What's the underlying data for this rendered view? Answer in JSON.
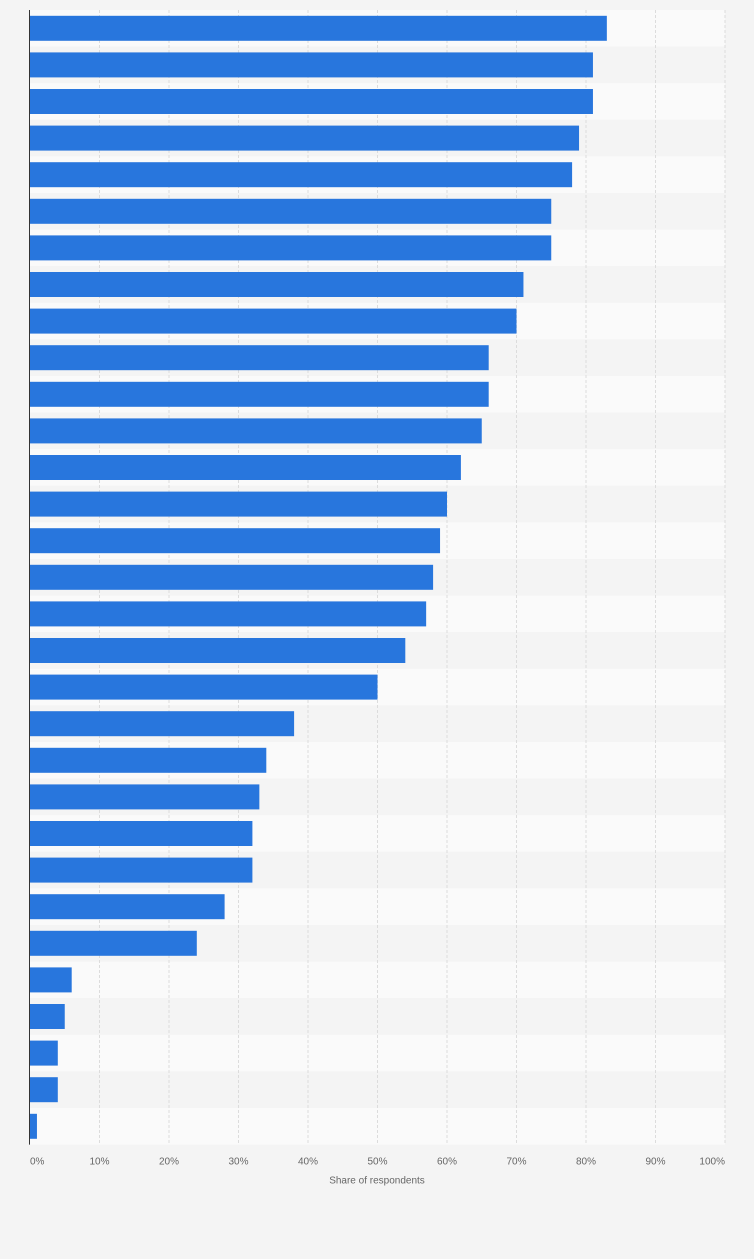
{
  "chart_data": {
    "type": "bar",
    "orientation": "horizontal",
    "values": [
      83,
      81,
      81,
      79,
      78,
      75,
      75,
      71,
      70,
      66,
      66,
      65,
      62,
      60,
      59,
      58,
      57,
      54,
      50,
      38,
      34,
      33,
      32,
      32,
      28,
      24,
      6,
      5,
      4,
      4,
      1
    ],
    "xlabel": "Share of respondents",
    "xlim": [
      0,
      100
    ],
    "xticks": [
      "0%",
      "10%",
      "20%",
      "30%",
      "40%",
      "50%",
      "60%",
      "70%",
      "80%",
      "90%",
      "100%"
    ],
    "grid": true,
    "bar_color": "#2876dd",
    "band_colors": [
      "#fafafa",
      "#f4f4f4"
    ]
  }
}
